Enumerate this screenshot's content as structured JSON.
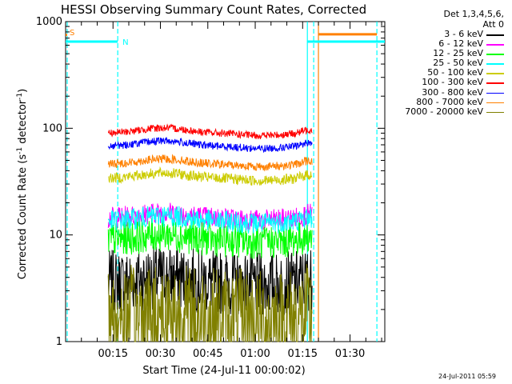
{
  "chart_data": {
    "type": "line",
    "title": "HESSI Observing Summary Count Rates, Corrected",
    "xlabel": "Start Time (24-Jul-11 00:00:02)",
    "ylabel_main": "Corrected Count Rate (s",
    "ylabel_sup1": "-1",
    "ylabel_mid": " detector",
    "ylabel_sup2": "-1",
    "ylabel_end": ")",
    "y_scale": "log",
    "ylim": [
      1,
      1000
    ],
    "xlim_minutes": [
      0,
      101
    ],
    "x_ticks": [
      {
        "minute": 15,
        "label": "00:15"
      },
      {
        "minute": 30,
        "label": "00:30"
      },
      {
        "minute": 45,
        "label": "00:45"
      },
      {
        "minute": 60,
        "label": "01:00"
      },
      {
        "minute": 75,
        "label": "01:15"
      },
      {
        "minute": 90,
        "label": "01:30"
      }
    ],
    "y_ticks": [
      {
        "value": 1,
        "label": "1"
      },
      {
        "value": 10,
        "label": "10"
      },
      {
        "value": 100,
        "label": "100"
      },
      {
        "value": 1000,
        "label": "1000"
      }
    ],
    "legend_header": [
      "Det 1,3,4,5,6,",
      "Att 0"
    ],
    "legend_placement": "right",
    "data_start_minute": 13.5,
    "data_end_minute": 78,
    "series": [
      {
        "name": "3 - 6 keV",
        "color": "#000000",
        "base": 3.6,
        "noise": 0.3
      },
      {
        "name": "6 - 12 keV",
        "color": "#ff00ff",
        "base": 14.5,
        "noise": 0.1
      },
      {
        "name": "12 - 25 keV",
        "color": "#00ff00",
        "base": 9.0,
        "noise": 0.16
      },
      {
        "name": "25 - 50 keV",
        "color": "#00ffff",
        "base": 13.5,
        "noise": 0.1
      },
      {
        "name": "50 - 100 keV",
        "color": "#cccc00",
        "base": 34,
        "noise": 0.05
      },
      {
        "name": "100 - 300 keV",
        "color": "#ff0000",
        "base": 90,
        "noise": 0.035
      },
      {
        "name": "300 - 800 keV",
        "color": "#0000ff",
        "base": 68,
        "noise": 0.035
      },
      {
        "name": "800 - 7000 keV",
        "color": "#ff8000",
        "base": 46,
        "noise": 0.04
      },
      {
        "name": "7000 - 20000 keV",
        "color": "#808000",
        "base": 1.6,
        "noise": 0.5
      }
    ],
    "flags": [
      {
        "label": "S",
        "color": "#ff8000",
        "start_minute": 0,
        "end_minute": 0.5,
        "value": 750
      },
      {
        "label": "N",
        "color": "#00ffff",
        "start_minute": 0,
        "end_minute": 16.5,
        "value": 650
      },
      {
        "label": "",
        "color": "#00ffff",
        "start_minute": 76.5,
        "end_minute": 101,
        "value": 650
      },
      {
        "label": "",
        "color": "#ff8000",
        "start_minute": 80,
        "end_minute": 98.5,
        "value": 760
      }
    ],
    "vertical_markers": [
      {
        "minute": 0.5,
        "color": "#00ffff",
        "style": "dashed"
      },
      {
        "minute": 16.5,
        "color": "#00ffff",
        "style": "dashed"
      },
      {
        "minute": 76.5,
        "color": "#00ffff",
        "style": "solid"
      },
      {
        "minute": 78.5,
        "color": "#00ffff",
        "style": "dashed"
      },
      {
        "minute": 80,
        "color": "#ff8000",
        "style": "solid"
      },
      {
        "minute": 98.5,
        "color": "#00ffff",
        "style": "dashed"
      }
    ]
  },
  "footer": {
    "timestamp": "24-Jul-2011 05:59"
  }
}
